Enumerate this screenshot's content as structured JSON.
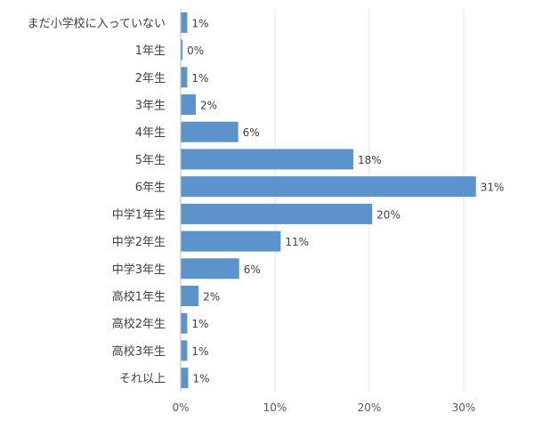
{
  "chart_data": {
    "type": "bar",
    "orientation": "horizontal",
    "categories": [
      "まだ小学校に入っていない",
      "1年生",
      "2年生",
      "3年生",
      "4年生",
      "5年生",
      "6年生",
      "中学1年生",
      "中学2年生",
      "中学3年生",
      "高校1年生",
      "高校2年生",
      "高校3年生",
      "それ以上"
    ],
    "values": [
      0.7,
      0.2,
      0.7,
      1.6,
      6.1,
      18.3,
      31.3,
      20.3,
      10.6,
      6.2,
      1.9,
      0.7,
      0.7,
      0.8
    ],
    "value_labels": [
      "1%",
      "0%",
      "1%",
      "2%",
      "6%",
      "18%",
      "31%",
      "20%",
      "11%",
      "6%",
      "2%",
      "1%",
      "1%",
      "1%"
    ],
    "xlim": [
      0,
      35
    ],
    "x_ticks": [
      0,
      10,
      20,
      30
    ],
    "x_tick_labels": [
      "0%",
      "10%",
      "20%",
      "30%"
    ],
    "bar_color": "#5B93CA",
    "grid": true,
    "legend": "none",
    "title": "",
    "xlabel": "",
    "ylabel": ""
  }
}
